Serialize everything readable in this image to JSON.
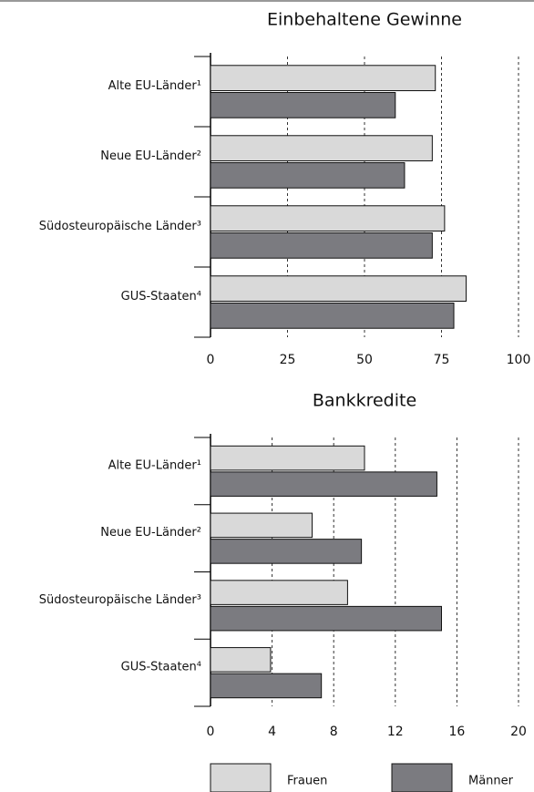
{
  "chart_data": [
    {
      "type": "bar",
      "orientation": "horizontal",
      "title": "Einbehaltene Gewinne",
      "categories": [
        "Alte EU-Länder¹",
        "Neue EU-Länder²",
        "Südosteuropäische Länder³",
        "GUS-Staaten⁴"
      ],
      "series": [
        {
          "name": "Frauen",
          "color": "#d9d9d9",
          "values": [
            73,
            72,
            76,
            83
          ]
        },
        {
          "name": "Männer",
          "color": "#7b7b80",
          "values": [
            60,
            63,
            72,
            79
          ]
        }
      ],
      "xlim": [
        0,
        100
      ],
      "xticks": [
        0,
        25,
        50,
        75,
        100
      ],
      "grid": true
    },
    {
      "type": "bar",
      "orientation": "horizontal",
      "title": "Bankkredite",
      "categories": [
        "Alte EU-Länder¹",
        "Neue EU-Länder²",
        "Südosteuropäische Länder³",
        "GUS-Staaten⁴"
      ],
      "series": [
        {
          "color": "#d9d9d9",
          "values": [
            10,
            6.6,
            8.9,
            3.9
          ]
        },
        {
          "color": "#7b7b80",
          "values": [
            14.7,
            9.8,
            15.0,
            7.2
          ]
        }
      ],
      "xlim": [
        0,
        20
      ],
      "xticks": [
        0,
        4,
        8,
        12,
        16,
        20
      ],
      "grid": true
    }
  ]
}
